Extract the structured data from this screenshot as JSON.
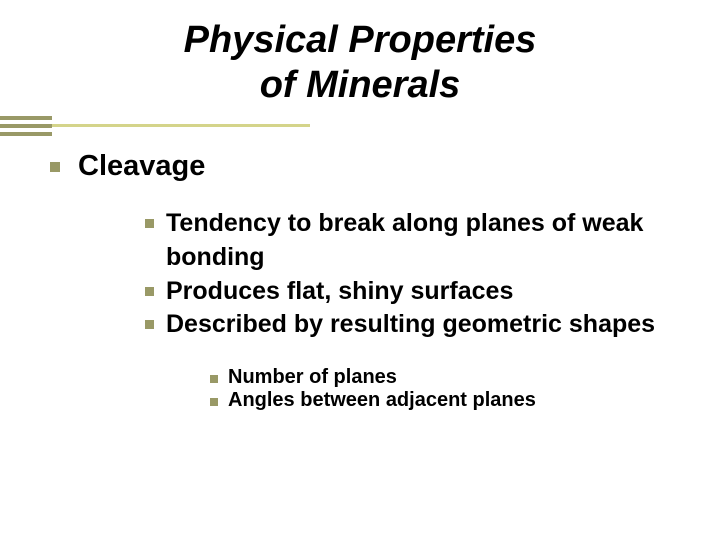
{
  "title": {
    "line1": "Physical Properties",
    "line2": "of Minerals",
    "fontsize": 38,
    "color": "#000000"
  },
  "decoration": {
    "long_color": "#d4d48a",
    "short_color": "#999967",
    "long_width": 310,
    "short_width": 52
  },
  "bullet_color": "#999966",
  "font_family": "Verdana",
  "level1": {
    "text": "Cleavage",
    "fontsize": 29
  },
  "level2": {
    "fontsize": 25,
    "items": [
      "Tendency to break along planes of weak bonding",
      "Produces flat, shiny surfaces",
      "Described by resulting geometric shapes"
    ]
  },
  "level3": {
    "fontsize": 20,
    "items": [
      "Number of planes",
      "Angles between adjacent planes"
    ]
  }
}
